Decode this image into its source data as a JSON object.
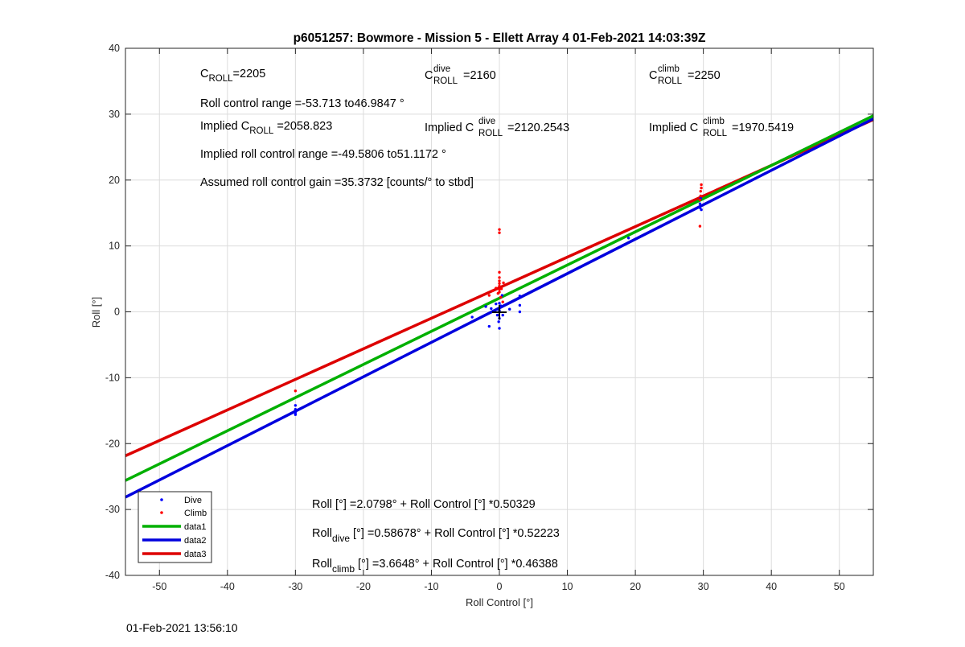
{
  "chart_data": {
    "type": "scatter",
    "title": "p6051257: Bowmore - Mission 5 - Ellett Array 4 01-Feb-2021 14:03:39Z",
    "xlabel": "Roll Control [°]",
    "ylabel": "Roll [°]",
    "xlim": [
      -55,
      55
    ],
    "ylim": [
      -40,
      40
    ],
    "xticks": [
      -50,
      -40,
      -30,
      -20,
      -10,
      0,
      10,
      20,
      30,
      40,
      50
    ],
    "yticks": [
      -40,
      -30,
      -20,
      -10,
      0,
      10,
      20,
      30,
      40
    ],
    "grid": true,
    "legend_position": "bottom-left",
    "colors": {
      "dive": "#0000ff",
      "climb": "#ff0000",
      "data1": "#00b000",
      "data2": "#0000dd",
      "data3": "#dd0000"
    },
    "scatter_series": [
      {
        "name": "Dive",
        "color": "#0000ff",
        "points": [
          [
            -30,
            -14.2
          ],
          [
            -30,
            -14.8
          ],
          [
            -30,
            -15.3
          ],
          [
            -30,
            -15.6
          ],
          [
            -4,
            -0.8
          ],
          [
            -2,
            0.8
          ],
          [
            -1.5,
            -2.2
          ],
          [
            -1.2,
            0.5
          ],
          [
            -0.5,
            1.2
          ],
          [
            -0.3,
            -0.5
          ],
          [
            -0.1,
            -1.5
          ],
          [
            0,
            -2.5
          ],
          [
            0,
            -1
          ],
          [
            0,
            0.2
          ],
          [
            0,
            0.6
          ],
          [
            0,
            1.3
          ],
          [
            0.2,
            0.9
          ],
          [
            0.4,
            2.5
          ],
          [
            0.5,
            -0.5
          ],
          [
            1.5,
            0.4
          ],
          [
            3,
            2.4
          ],
          [
            3,
            1
          ],
          [
            3,
            0
          ],
          [
            19,
            11.2
          ],
          [
            29.5,
            15.8
          ],
          [
            29.5,
            16.4
          ],
          [
            29.6,
            17.2
          ],
          [
            29.7,
            15.5
          ]
        ]
      },
      {
        "name": "Climb",
        "color": "#ff0000",
        "points": [
          [
            -30,
            -12
          ],
          [
            -1.5,
            2.5
          ],
          [
            -1,
            3.2
          ],
          [
            -0.5,
            3.6
          ],
          [
            -0.2,
            2.8
          ],
          [
            0,
            3.0
          ],
          [
            0,
            3.4
          ],
          [
            0,
            3.9
          ],
          [
            0,
            4.3
          ],
          [
            0,
            4.7
          ],
          [
            0,
            5.2
          ],
          [
            0,
            6.0
          ],
          [
            0,
            12.0
          ],
          [
            0,
            12.5
          ],
          [
            0.2,
            2.2
          ],
          [
            0.3,
            3.5
          ],
          [
            0.5,
            1.5
          ],
          [
            0.6,
            4.4
          ],
          [
            29.5,
            13.0
          ],
          [
            29.5,
            17.0
          ],
          [
            29.6,
            17.6
          ],
          [
            29.6,
            18.3
          ],
          [
            29.7,
            18.8
          ],
          [
            29.7,
            19.3
          ]
        ]
      }
    ],
    "series": [
      {
        "name": "data1",
        "color": "#00b000",
        "intercept": 2.0798,
        "slope": 0.50329
      },
      {
        "name": "data2",
        "color": "#0000dd",
        "intercept": 0.58678,
        "slope": 0.52223
      },
      {
        "name": "data3",
        "color": "#dd0000",
        "intercept": 3.6648,
        "slope": 0.46388
      }
    ],
    "legend": [
      "Dive",
      "Climb",
      "data1",
      "data2",
      "data3"
    ],
    "annotations": {
      "c_roll": {
        "base": "C",
        "sub": "ROLL",
        "value": "=2205"
      },
      "c_roll_dive": {
        "base": "C",
        "sup": "dive",
        "sub": "ROLL",
        "value": " =2160"
      },
      "c_roll_climb": {
        "base": "C",
        "sup": "climb",
        "sub": "ROLL",
        "value": " =2250"
      },
      "roll_control_range": "Roll control range =-53.713 to46.9847 °",
      "implied_c_roll": {
        "prefix": "Implied C",
        "sub": "ROLL",
        "value": " =2058.823"
      },
      "implied_c_roll_dive": {
        "prefix": "Implied C",
        "sup": "dive",
        "sub": "ROLL",
        "value": " =2120.2543"
      },
      "implied_c_roll_climb": {
        "prefix": "Implied C",
        "sup": "climb",
        "sub": "ROLL",
        "value": " =1970.5419"
      },
      "implied_range": "Implied roll control range =-49.5806 to51.1172 °",
      "gain": "Assumed roll control gain =35.3732 [counts/° to stbd]",
      "eq_all": "Roll [°] =2.0798° + Roll Control [°] *0.50329",
      "eq_dive": {
        "base": "Roll",
        "sub": "dive",
        "rest": " [°] =0.58678° + Roll Control [°] *0.52223"
      },
      "eq_climb": {
        "base": "Roll",
        "sub": "climb",
        "rest": " [°] =3.6648° + Roll Control [°] *0.46388"
      }
    },
    "timestamp": "01-Feb-2021 13:56:10"
  }
}
